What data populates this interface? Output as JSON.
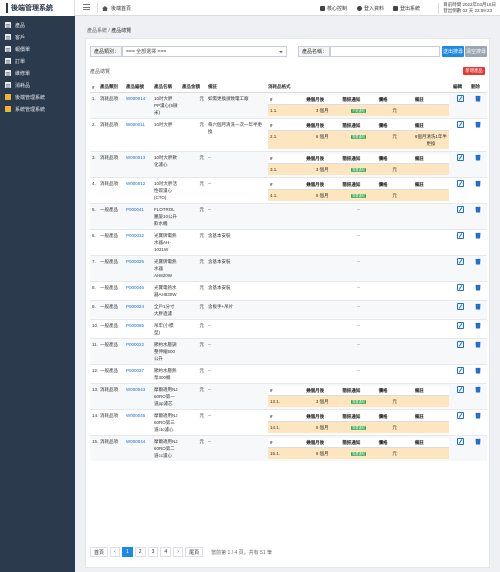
{
  "app": {
    "title": "後端管理系統"
  },
  "sidebar": {
    "items": [
      {
        "label": "產品",
        "icon": "document-icon"
      },
      {
        "label": "客戶",
        "icon": "document-icon"
      },
      {
        "label": "報價單",
        "icon": "document-icon"
      },
      {
        "label": "訂單",
        "icon": "document-icon"
      },
      {
        "label": "維修單",
        "icon": "document-icon"
      },
      {
        "label": "消耗品",
        "icon": "document-icon"
      },
      {
        "label": "後端管理系統",
        "icon": "folder-icon"
      },
      {
        "label": "系統管理系統",
        "icon": "folder-icon"
      }
    ]
  },
  "topbar": {
    "home_label": "後端首頁",
    "links": [
      {
        "label": "核心控制",
        "icon": "wrench-icon"
      },
      {
        "label": "登入資料",
        "icon": "user-icon"
      },
      {
        "label": "登出系統",
        "icon": "logout-icon"
      }
    ],
    "time_line1": "目前時間 2022年03月16日",
    "time_line2": "登出倒數 02 天 23:59:23"
  },
  "breadcrumb": {
    "root": "產品系統",
    "sep": "/",
    "current": "產品總覽"
  },
  "search": {
    "category_label": "產品類別：",
    "category_value": "=== 全部選擇 ===",
    "name_label": "產品名稱：",
    "name_placeholder": "",
    "search_button": "送出搜尋",
    "clear_button": "清空搜尋"
  },
  "list": {
    "title": "產品總覽",
    "add_button": "新增產品"
  },
  "table": {
    "headers": [
      "#",
      "產品類別",
      "產品編號",
      "產品名稱",
      "產品金額",
      "備註",
      "消耗品格式",
      "編輯",
      "刪除"
    ],
    "sub_headers": [
      "#",
      "幾個月後",
      "簡訊通知",
      "價格",
      "備註"
    ],
    "rows": [
      {
        "no": "1.",
        "category": "消耗品項",
        "code": "W000014",
        "name": "10吋大胖PP濾心(5微米)",
        "price": "元",
        "note": "如需更換請致電工廠",
        "consumables": [
          {
            "no": "1.1.",
            "months": "3 個月",
            "sms": "不需通知",
            "price": "元",
            "note": ""
          }
        ]
      },
      {
        "no": "2.",
        "category": "消耗品項",
        "code": "W000011",
        "name": "10吋大胖",
        "price": "元",
        "note": "每六個月清洗一次一年半更換",
        "consumables": [
          {
            "no": "2.1.",
            "months": "6 個月",
            "sms": "需要通知",
            "price": "元",
            "note": "6個月清洗1年半更換"
          }
        ]
      },
      {
        "no": "3.",
        "category": "消耗品項",
        "code": "W000013",
        "name": "10吋大胖軟化濾心",
        "price": "元",
        "note": "--",
        "consumables": [
          {
            "no": "3.1.",
            "months": "3 個月",
            "sms": "需要通知",
            "price": "元",
            "note": ""
          }
        ]
      },
      {
        "no": "4.",
        "category": "消耗品項",
        "code": "W000012",
        "name": "10吋大胖活性碳濾心(CTO)",
        "price": "元",
        "note": "--",
        "consumables": [
          {
            "no": "4.1.",
            "months": "6 個月",
            "sms": "需要通知",
            "price": "元",
            "note": ""
          }
        ]
      },
      {
        "no": "5.",
        "category": "一般產品",
        "code": "P000041",
        "name": "FLOTROL 鵬旋10公升飲水機",
        "price": "元",
        "note": "--",
        "consumables": []
      },
      {
        "no": "6.",
        "category": "一般產品",
        "code": "P000032",
        "name": "光寶牌電熱水器AH-1031W",
        "price": "元",
        "note": "含基本安裝",
        "consumables": []
      },
      {
        "no": "7.",
        "category": "一般產品",
        "code": "P000025",
        "name": "光寶牌電熱水器AH820W",
        "price": "元",
        "note": "含基本安裝",
        "consumables": []
      },
      {
        "no": "8.",
        "category": "一般產品",
        "code": "P000046",
        "name": "光寶電熱水器AH830W",
        "price": "元",
        "note": "含基本安裝",
        "consumables": []
      },
      {
        "no": "9.",
        "category": "一般產品",
        "code": "P000024",
        "name": "全戶1分寸大胖過濾",
        "price": "元",
        "note": "含板手+吊片",
        "consumables": []
      },
      {
        "no": "10.",
        "category": "一般產品",
        "code": "P000085",
        "name": "吊牢(小標型)",
        "price": "元",
        "note": "--",
        "consumables": []
      },
      {
        "no": "11.",
        "category": "一般產品",
        "code": "P000022",
        "name": "節約水壓調整伸縮500公升",
        "price": "元",
        "note": "--",
        "consumables": []
      },
      {
        "no": "12.",
        "category": "一般產品",
        "code": "P000037",
        "name": "節約水壓熱泵300桶",
        "price": "元",
        "note": "--",
        "consumables": []
      },
      {
        "no": "13.",
        "category": "消耗品項",
        "code": "W000043",
        "name": "摩爾適用NJ 60RO第一道pp濾芯",
        "price": "元",
        "note": "--",
        "consumables": [
          {
            "no": "13.1.",
            "months": "3 個月",
            "sms": "需要通知",
            "price": "元",
            "note": ""
          }
        ]
      },
      {
        "no": "14.",
        "category": "消耗品項",
        "code": "W000045",
        "name": "摩爾適用NJ 60RO第三道cto濾心",
        "price": "元",
        "note": "--",
        "consumables": [
          {
            "no": "14.1.",
            "months": "6 個月",
            "sms": "需要通知",
            "price": "元",
            "note": ""
          }
        ]
      },
      {
        "no": "15.",
        "category": "消耗品項",
        "code": "W000044",
        "name": "摩爾適用NJ 60RO第二道cc濾心",
        "price": "元",
        "note": "--",
        "consumables": [
          {
            "no": "15.1.",
            "months": "6 個月",
            "sms": "需要通知",
            "price": "元",
            "note": ""
          }
        ]
      }
    ]
  },
  "pagination": {
    "first": "首頁",
    "prev": "‹",
    "pages": [
      "1",
      "2",
      "3",
      "4"
    ],
    "active": "1",
    "next": "›",
    "last": "尾頁",
    "info": "當前第 1 / 4 頁，共有 51 筆"
  }
}
